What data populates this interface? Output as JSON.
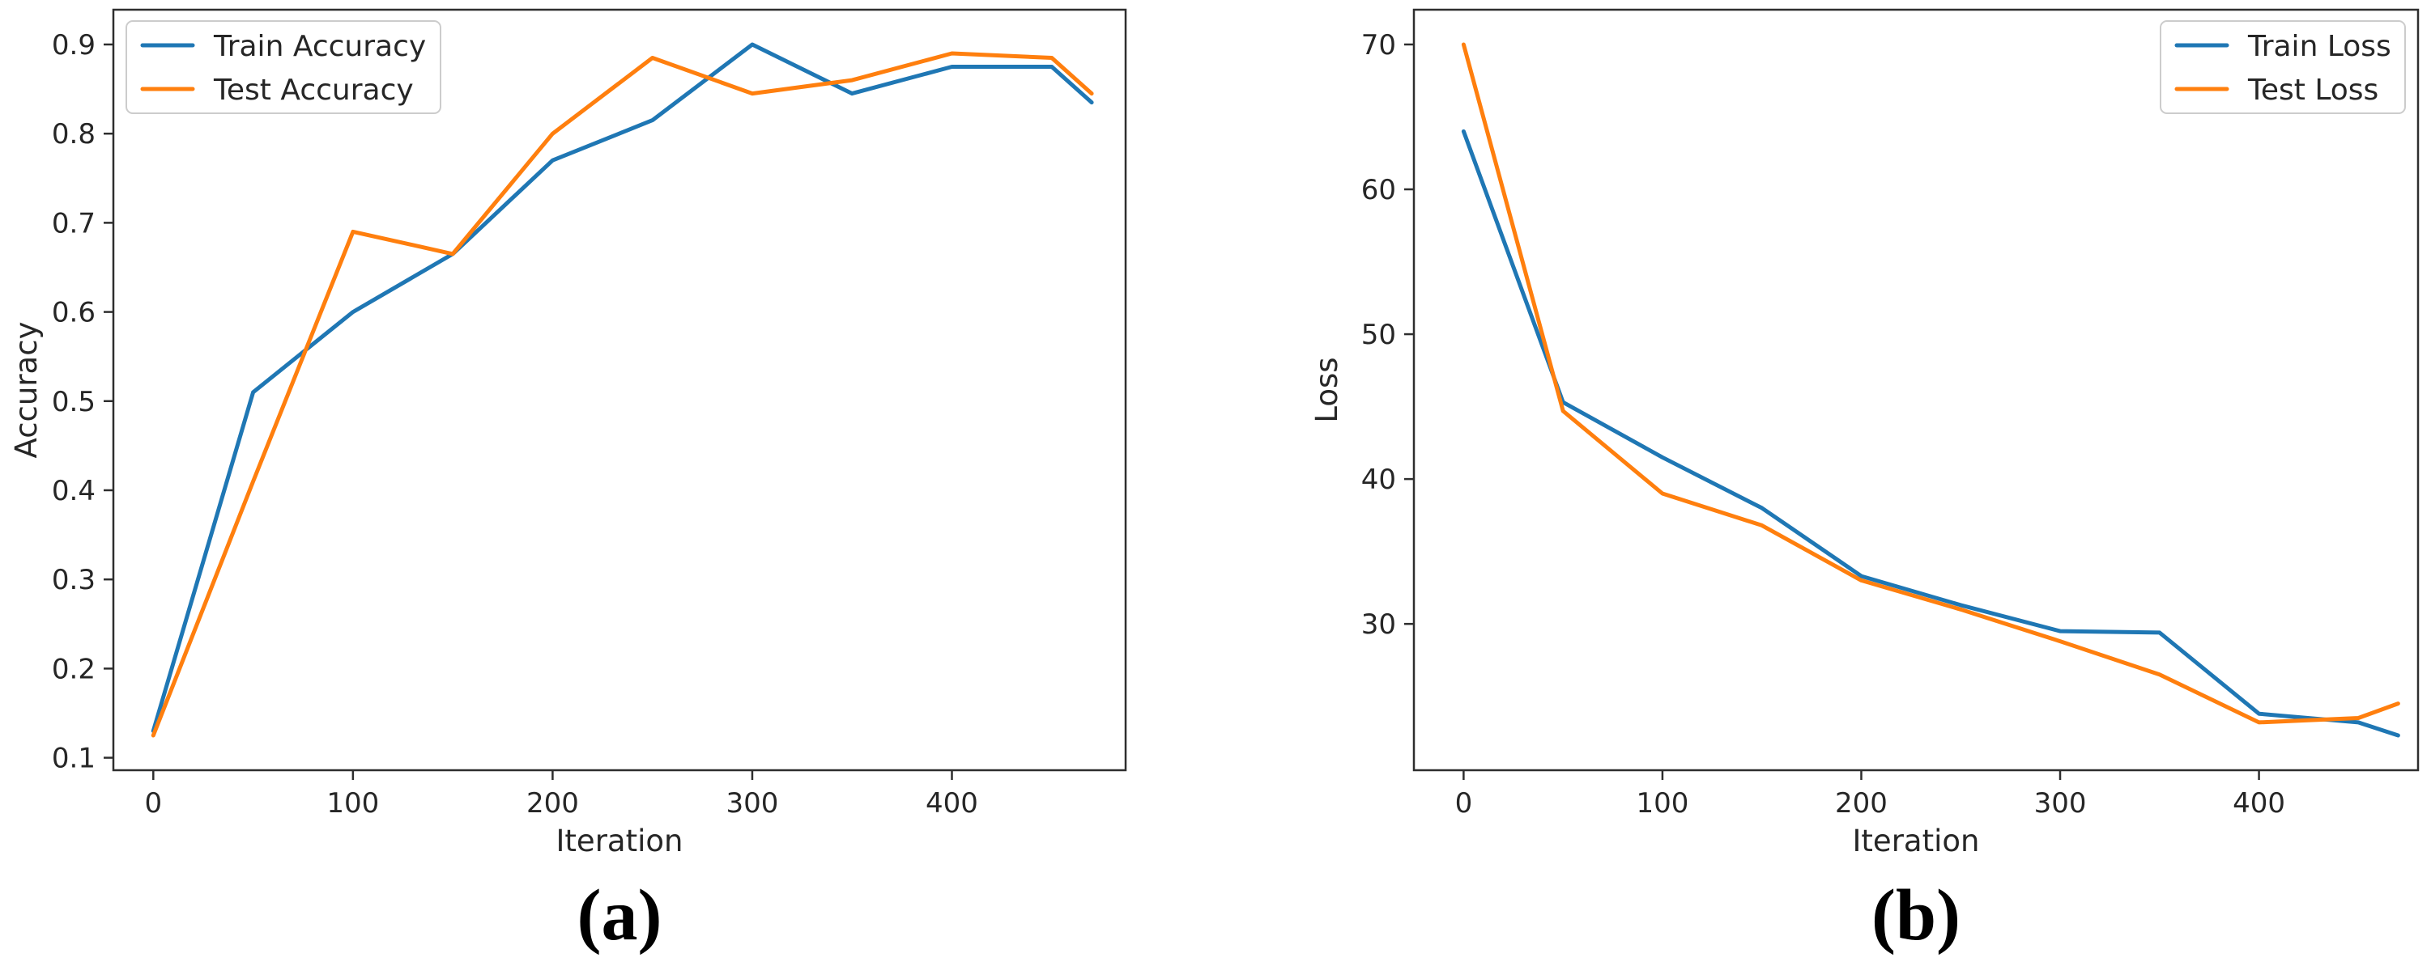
{
  "figure": {
    "background": "#ffffff"
  },
  "palette": {
    "train_color": "#1f77b4",
    "test_color": "#ff7f0e",
    "text_color": "#262626",
    "spine_color": "#2e2e2e",
    "legend_border": "#cccccc",
    "legend_fill": "#ffffff"
  },
  "chart_data": [
    {
      "id": "accuracy-panel",
      "type": "line",
      "caption": "(a)",
      "title": "",
      "xlabel": "Iteration",
      "ylabel": "Accuracy",
      "xlim": [
        -20,
        487
      ],
      "ylim": [
        0.086,
        0.939
      ],
      "xticks": [
        0,
        100,
        200,
        300,
        400
      ],
      "xtick_labels": [
        "0",
        "100",
        "200",
        "300",
        "400"
      ],
      "yticks": [
        0.1,
        0.2,
        0.3,
        0.4,
        0.5,
        0.6,
        0.7,
        0.8,
        0.9
      ],
      "ytick_labels": [
        "0.1",
        "0.2",
        "0.3",
        "0.4",
        "0.5",
        "0.6",
        "0.7",
        "0.8",
        "0.9"
      ],
      "grid": false,
      "legend_position": "upper left",
      "x": [
        0,
        50,
        100,
        150,
        200,
        250,
        300,
        350,
        400,
        450,
        470
      ],
      "series": [
        {
          "name": "Train Accuracy",
          "color": "#1f77b4",
          "values": [
            0.13,
            0.51,
            0.6,
            0.665,
            0.77,
            0.815,
            0.9,
            0.845,
            0.875,
            0.875,
            0.835
          ]
        },
        {
          "name": "Test Accuracy",
          "color": "#ff7f0e",
          "values": [
            0.125,
            0.41,
            0.69,
            0.665,
            0.8,
            0.885,
            0.845,
            0.86,
            0.89,
            0.885,
            0.845
          ]
        }
      ]
    },
    {
      "id": "loss-panel",
      "type": "line",
      "caption": "(b)",
      "title": "",
      "xlabel": "Iteration",
      "ylabel": "Loss",
      "xlim": [
        -25,
        480
      ],
      "ylim": [
        19.9,
        72.4
      ],
      "xticks": [
        0,
        100,
        200,
        300,
        400
      ],
      "xtick_labels": [
        "0",
        "100",
        "200",
        "300",
        "400"
      ],
      "yticks": [
        30,
        40,
        50,
        60,
        70
      ],
      "ytick_labels": [
        "30",
        "40",
        "50",
        "60",
        "70"
      ],
      "grid": false,
      "legend_position": "upper right",
      "x": [
        0,
        50,
        100,
        150,
        200,
        250,
        300,
        350,
        400,
        450,
        470
      ],
      "series": [
        {
          "name": "Train Loss",
          "color": "#1f77b4",
          "values": [
            64,
            45.3,
            41.5,
            38,
            33.3,
            31.3,
            29.5,
            29.4,
            23.8,
            23.2,
            22.3
          ]
        },
        {
          "name": "Test Loss",
          "color": "#ff7f0e",
          "values": [
            70,
            44.7,
            39,
            36.8,
            33,
            31,
            28.8,
            26.5,
            23.2,
            23.5,
            24.5
          ]
        }
      ]
    }
  ]
}
